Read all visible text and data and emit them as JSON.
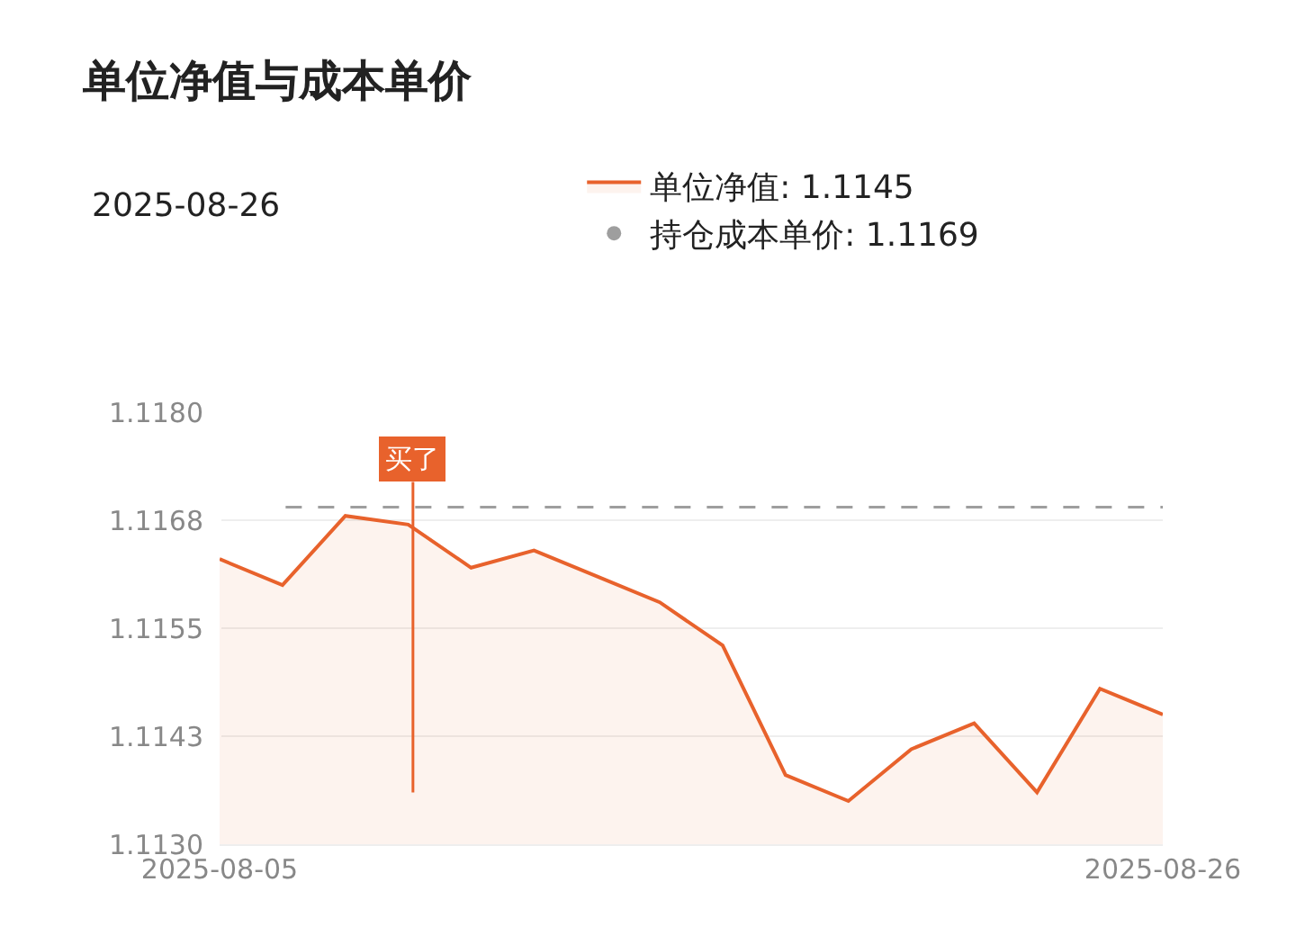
{
  "chart_data": {
    "type": "area",
    "title": "单位净值与成本单价",
    "categories": [
      "2025-08-05",
      null,
      null,
      null,
      null,
      null,
      null,
      null,
      null,
      null,
      null,
      null,
      null,
      null,
      null,
      "2025-08-26"
    ],
    "series": [
      {
        "name": "单位净值: 1.1145",
        "color": "#e8622c",
        "values": [
          1.1163,
          1.116,
          1.1168,
          1.1167,
          1.1162,
          1.1164,
          1.1161,
          1.1158,
          1.1153,
          1.1138,
          1.1135,
          1.1141,
          1.1144,
          1.1136,
          1.1148,
          1.1145
        ]
      }
    ],
    "ref_lines": [
      {
        "axis": "y",
        "value": 1.1169,
        "label": "持仓成本单价: 1.1169",
        "color": "#9e9e9e",
        "line_style": "dashed"
      }
    ],
    "annotations": [
      "2025-08-26",
      "买了"
    ],
    "ylim": [
      1.113,
      1.118
    ],
    "yticks": [
      {
        "value": 1.113,
        "label": "1.1130"
      },
      {
        "value": 1.11425,
        "label": "1.1143"
      },
      {
        "value": 1.1155,
        "label": "1.1155"
      },
      {
        "value": 1.11675,
        "label": "1.1168"
      },
      {
        "value": 1.118,
        "label": "1.1180"
      }
    ],
    "grid": "y",
    "legend": "top right",
    "marker": "none",
    "line_style": "solid"
  }
}
